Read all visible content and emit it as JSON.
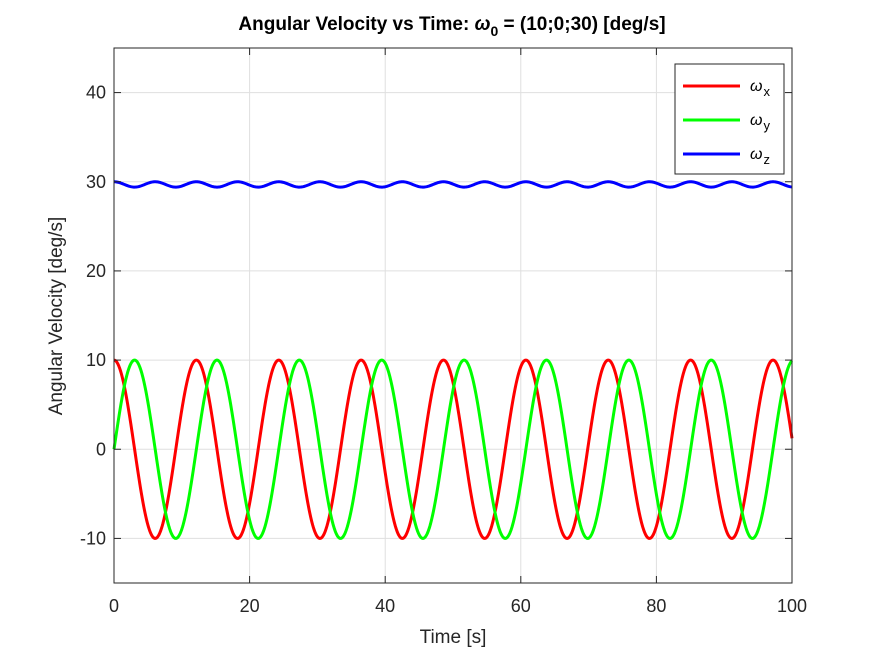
{
  "chart_data": {
    "type": "line",
    "title": {
      "prefix": "Angular Velocity vs Time: ",
      "omega_symbol": "ω",
      "omega_subscript": "0",
      "suffix": " = (10;0;30) [deg/s]"
    },
    "xlabel": "Time [s]",
    "ylabel": "Angular Velocity [deg/s]",
    "xlim": [
      0,
      100
    ],
    "ylim": [
      -15,
      45
    ],
    "xticks": [
      0,
      20,
      40,
      60,
      80,
      100
    ],
    "yticks": [
      -10,
      0,
      10,
      20,
      30,
      40
    ],
    "xtick_labels": [
      "0",
      "20",
      "40",
      "60",
      "80",
      "100"
    ],
    "ytick_labels": [
      "-10",
      "0",
      "10",
      "20",
      "30",
      "40"
    ],
    "grid": true,
    "legend_position": "top-right",
    "sample_step": 0.1,
    "series": [
      {
        "symbol": "ω",
        "subscript": "x",
        "color": "#ff0000",
        "offset": 0,
        "amplitude": 10,
        "period": 12.15,
        "phase_deg": 90
      },
      {
        "symbol": "ω",
        "subscript": "y",
        "color": "#00ff00",
        "offset": 0,
        "amplitude": 10,
        "period": 12.15,
        "phase_deg": 0
      },
      {
        "symbol": "ω",
        "subscript": "z",
        "color": "#0000ff",
        "offset": 29.7,
        "amplitude": 0.3,
        "period": 6.075,
        "phase_deg": 90
      }
    ]
  }
}
